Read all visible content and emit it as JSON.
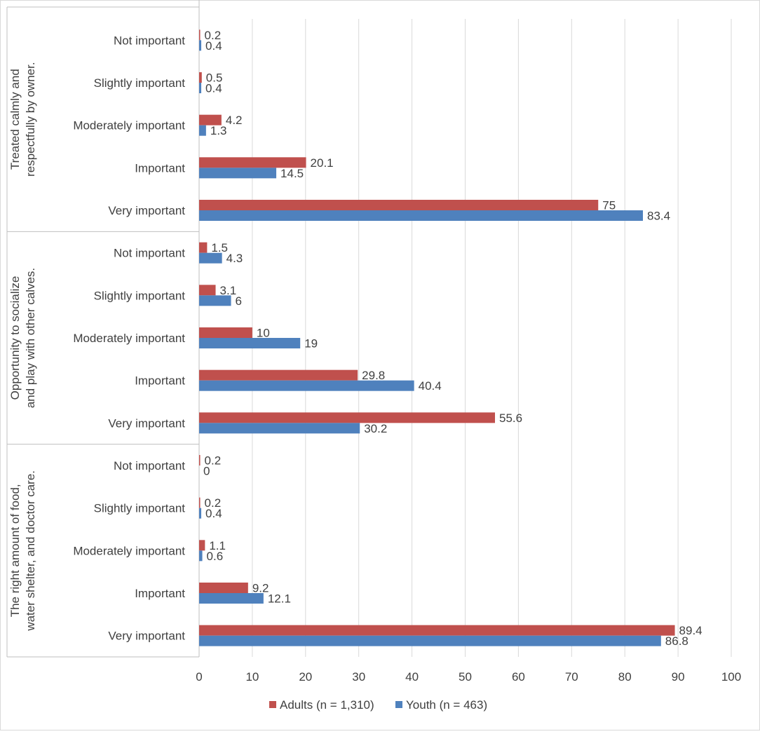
{
  "chart_data": {
    "type": "bar",
    "orientation": "horizontal",
    "groups": [
      {
        "label": "Treated calmly and respectfully by owner.",
        "categories": [
          "Not important",
          "Slightly important",
          "Moderately important",
          "Important",
          "Very important"
        ]
      },
      {
        "label": "Opportunity to socialize and play with other calves.",
        "categories": [
          "Not important",
          "Slightly important",
          "Moderately important",
          "Important",
          "Very important"
        ]
      },
      {
        "label": "The right amount of food, water shelter, and doctor care.",
        "categories": [
          "Not important",
          "Slightly important",
          "Moderately important",
          "Important",
          "Very important"
        ]
      }
    ],
    "series": [
      {
        "name": "Adults (n = 1,310)",
        "color": "#C0504D",
        "values": [
          [
            0.2,
            0.5,
            4.2,
            20.1,
            75
          ],
          [
            1.5,
            3.1,
            10,
            29.8,
            55.6
          ],
          [
            0.2,
            0.2,
            1.1,
            9.2,
            89.4
          ]
        ],
        "labels": [
          [
            "0.2",
            "0.5",
            "4.2",
            "20.1",
            "75"
          ],
          [
            "1.5",
            "3.1",
            "10",
            "29.8",
            "55.6"
          ],
          [
            "0.2",
            "0.2",
            "1.1",
            "9.2",
            "89.4"
          ]
        ]
      },
      {
        "name": "Youth (n = 463)",
        "color": "#4F81BD",
        "values": [
          [
            0.4,
            0.4,
            1.3,
            14.5,
            83.4
          ],
          [
            4.3,
            6,
            19,
            40.4,
            30.2
          ],
          [
            0,
            0.4,
            0.6,
            12.1,
            86.8
          ]
        ],
        "labels": [
          [
            "0.4",
            "0.4",
            "1.3",
            "14.5",
            "83.4"
          ],
          [
            "4.3",
            "6",
            "19",
            "40.4",
            "30.2"
          ],
          [
            "0",
            "0.4",
            "0.6",
            "12.1",
            "86.8"
          ]
        ]
      }
    ],
    "xlim": [
      0,
      100
    ],
    "xticks": [
      0,
      10,
      20,
      30,
      40,
      50,
      60,
      70,
      80,
      90,
      100
    ],
    "xtick_labels": [
      "0",
      "10",
      "20",
      "30",
      "40",
      "50",
      "60",
      "70",
      "80",
      "90",
      "100"
    ],
    "grid": true,
    "legend": "bottom"
  }
}
